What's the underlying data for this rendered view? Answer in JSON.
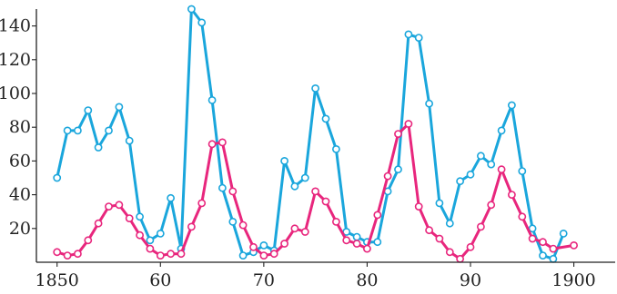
{
  "chart_data": {
    "type": "line",
    "title": "",
    "xlabel": "",
    "ylabel": "",
    "xlim": [
      1848,
      1904
    ],
    "ylim": [
      0,
      150
    ],
    "grid": false,
    "legend": "none",
    "x_ticks": [
      {
        "value": 1850,
        "label": "1850"
      },
      {
        "value": 1860,
        "label": "60"
      },
      {
        "value": 1870,
        "label": "70"
      },
      {
        "value": 1880,
        "label": "80"
      },
      {
        "value": 1890,
        "label": "90"
      },
      {
        "value": 1900,
        "label": "1900"
      }
    ],
    "y_ticks": [
      {
        "value": 20,
        "label": "20"
      },
      {
        "value": 40,
        "label": "40"
      },
      {
        "value": 60,
        "label": "60"
      },
      {
        "value": 80,
        "label": "80"
      },
      {
        "value": 100,
        "label": "100"
      },
      {
        "value": 120,
        "label": "120"
      },
      {
        "value": 140,
        "label": "140"
      }
    ],
    "x": [
      1850,
      1851,
      1852,
      1853,
      1854,
      1855,
      1856,
      1857,
      1858,
      1859,
      1860,
      1861,
      1862,
      1863,
      1864,
      1865,
      1866,
      1867,
      1868,
      1869,
      1870,
      1871,
      1872,
      1873,
      1874,
      1875,
      1876,
      1877,
      1878,
      1879,
      1880,
      1881,
      1882,
      1883,
      1884,
      1885,
      1886,
      1887,
      1888,
      1889,
      1890,
      1891,
      1892,
      1893,
      1894,
      1895,
      1896,
      1897,
      1898,
      1899,
      1900
    ],
    "series": [
      {
        "color": "#1aa6dc",
        "values": [
          50,
          78,
          78,
          90,
          68,
          78,
          92,
          72,
          27,
          13,
          17,
          38,
          8,
          150,
          142,
          96,
          44,
          24,
          4,
          6,
          10,
          7,
          60,
          45,
          50,
          103,
          85,
          67,
          18,
          15,
          12,
          12,
          42,
          55,
          135,
          133,
          94,
          35,
          23,
          48,
          52,
          63,
          58,
          78,
          93,
          54,
          20,
          4,
          2,
          17,
          null
        ]
      },
      {
        "color": "#e8267d",
        "values": [
          6,
          4,
          5,
          13,
          23,
          33,
          34,
          26,
          16,
          8,
          4,
          5,
          5,
          21,
          35,
          70,
          71,
          42,
          22,
          9,
          4,
          5,
          11,
          20,
          18,
          42,
          36,
          24,
          13,
          11,
          8,
          28,
          51,
          76,
          82,
          33,
          19,
          14,
          6,
          2,
          9,
          21,
          34,
          55,
          40,
          27,
          14,
          12,
          8,
          null,
          10
        ]
      }
    ]
  }
}
